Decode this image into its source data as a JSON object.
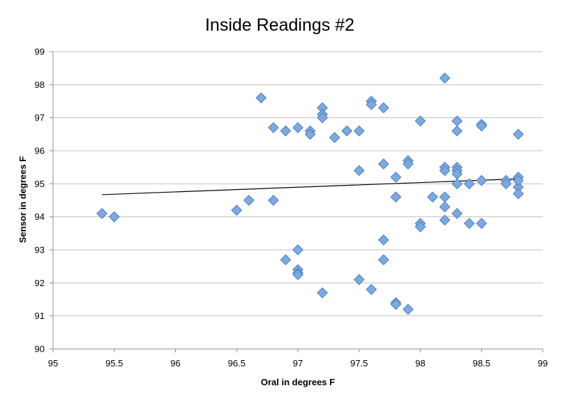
{
  "chart_data": {
    "type": "scatter",
    "title": "Inside Readings #2",
    "xlabel": "Oral in degrees F",
    "ylabel": "Sensor in degrees F",
    "xlim": [
      95,
      99
    ],
    "ylim": [
      90,
      99
    ],
    "xticks": [
      95,
      95.5,
      96,
      96.5,
      97,
      97.5,
      98,
      98.5,
      99
    ],
    "xtick_labels": [
      "95",
      "95.5",
      "96",
      "96.5",
      "97",
      "97.5",
      "98",
      "98.5",
      "99"
    ],
    "yticks": [
      90,
      91,
      92,
      93,
      94,
      95,
      96,
      97,
      98,
      99
    ],
    "ytick_labels": [
      "90",
      "91",
      "92",
      "93",
      "94",
      "95",
      "96",
      "97",
      "98",
      "99"
    ],
    "grid": "horizontal",
    "legend": "none",
    "marker": "diamond",
    "marker_color": "#7ea9dc",
    "trendline": {
      "type": "linear",
      "x": [
        95.4,
        98.8
      ],
      "y": [
        94.67,
        95.15
      ]
    },
    "series": [
      {
        "x": [
          95.4,
          95.5,
          96.5,
          96.6,
          96.7,
          96.8,
          96.8,
          96.9,
          96.9,
          97.0,
          97.0,
          97.0,
          97.0,
          97.0,
          97.1,
          97.1,
          97.2,
          97.2,
          97.2,
          97.2,
          97.3,
          97.4,
          97.5,
          97.5,
          97.5,
          97.6,
          97.6,
          97.6,
          97.7,
          97.7,
          97.7,
          97.7,
          97.8,
          97.8,
          97.8,
          97.8,
          97.9,
          97.9,
          97.9,
          98.0,
          98.0,
          98.0,
          98.1,
          98.2,
          98.2,
          98.2,
          98.2,
          98.2,
          98.2,
          98.3,
          98.3,
          98.3,
          98.3,
          98.3,
          98.3,
          98.3,
          98.4,
          98.4,
          98.5,
          98.5,
          98.5,
          98.5,
          98.7,
          98.7,
          98.8,
          98.8,
          98.8,
          98.8,
          98.8
        ],
        "y": [
          94.1,
          94.0,
          94.2,
          94.5,
          97.6,
          96.7,
          94.5,
          96.6,
          92.7,
          96.7,
          93.0,
          92.4,
          92.3,
          92.25,
          96.6,
          96.5,
          97.3,
          97.1,
          97.0,
          91.7,
          96.4,
          96.6,
          96.6,
          95.4,
          92.1,
          97.5,
          97.4,
          91.8,
          97.3,
          95.6,
          93.3,
          92.7,
          95.2,
          94.6,
          91.4,
          91.35,
          95.7,
          95.6,
          91.2,
          96.9,
          93.8,
          93.7,
          94.6,
          98.2,
          95.5,
          95.4,
          94.6,
          94.3,
          93.9,
          96.9,
          96.6,
          95.5,
          95.4,
          95.3,
          95.0,
          94.1,
          95.0,
          93.8,
          96.8,
          96.75,
          95.1,
          93.8,
          95.1,
          95.0,
          96.5,
          95.2,
          94.9,
          94.7,
          95.1
        ]
      }
    ]
  }
}
